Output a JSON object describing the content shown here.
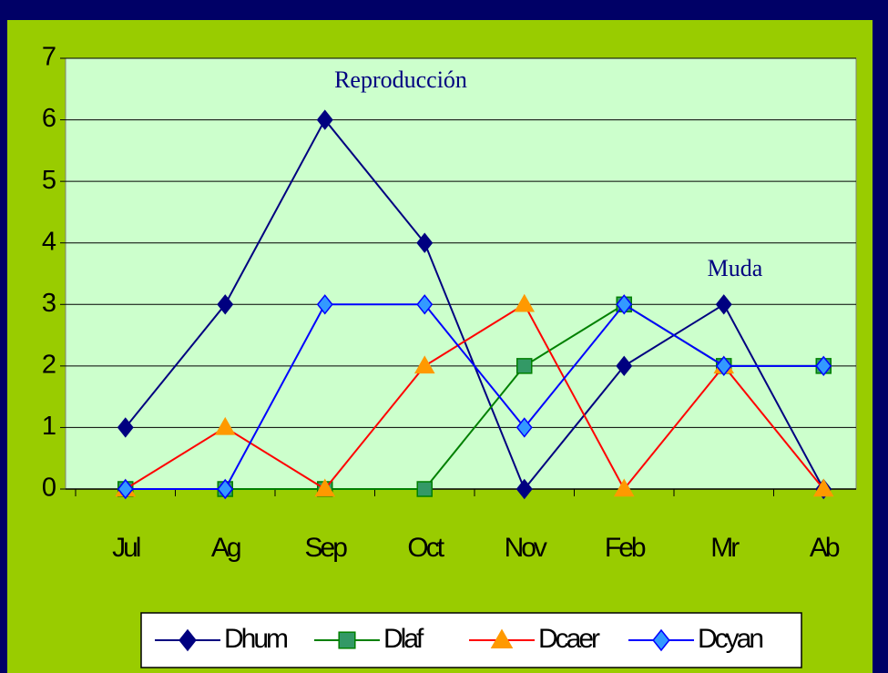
{
  "chart_data": {
    "type": "line",
    "categories": [
      "Jul",
      "Ag",
      "Sep",
      "Oct",
      "Nov",
      "Feb",
      "Mr",
      "Ab"
    ],
    "series": [
      {
        "name": "Dhum",
        "color": "#000080",
        "marker": "diamond",
        "marker_color": "#000080",
        "values": [
          1,
          3,
          6,
          4,
          0,
          2,
          3,
          0
        ]
      },
      {
        "name": "Dlaf",
        "color": "#008000",
        "marker": "square",
        "marker_color": "#339966",
        "values": [
          0,
          0,
          0,
          0,
          2,
          3,
          2,
          2
        ]
      },
      {
        "name": "Dcaer",
        "color": "#ff0000",
        "marker": "triangle",
        "marker_color": "#ff9900",
        "values": [
          0,
          1,
          0,
          2,
          3,
          0,
          2,
          0
        ]
      },
      {
        "name": "Dcyan",
        "color": "#0000ff",
        "marker": "diamond",
        "marker_color": "#3399ff",
        "values": [
          0,
          0,
          3,
          3,
          1,
          3,
          2,
          2
        ]
      }
    ],
    "annotations": [
      "Reproducción",
      "Muda"
    ],
    "ylim": [
      0,
      7
    ],
    "yticks": [
      0,
      1,
      2,
      3,
      4,
      5,
      6,
      7
    ],
    "grid": true,
    "legend": "bottom"
  }
}
